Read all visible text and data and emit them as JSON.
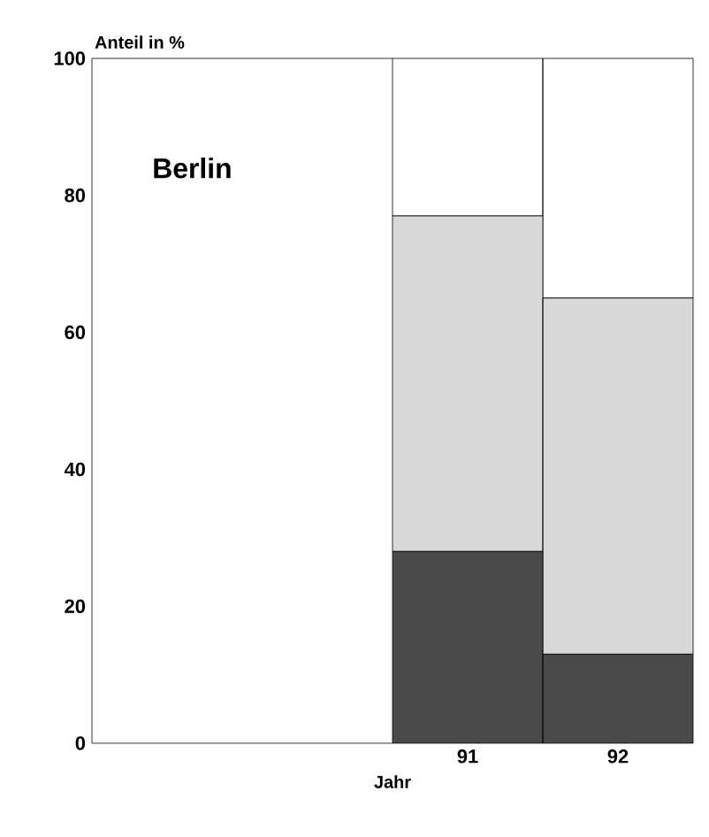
{
  "chart_data": {
    "type": "bar",
    "stacked": true,
    "ylabel": "Anteil in %",
    "xlabel": "Jahr",
    "annotations": [
      "Berlin"
    ],
    "categories": [
      null,
      null,
      "91",
      "92"
    ],
    "series": [
      {
        "color": "#4a4a4a",
        "values": [
          null,
          null,
          28,
          13
        ]
      },
      {
        "color": "#d9d9d9",
        "values": [
          null,
          null,
          49,
          52
        ]
      },
      {
        "color": "#ffffff",
        "values": [
          null,
          null,
          23,
          35
        ]
      }
    ],
    "ylim": [
      0,
      100
    ],
    "yticks": [
      0,
      20,
      40,
      60,
      80,
      100
    ]
  }
}
